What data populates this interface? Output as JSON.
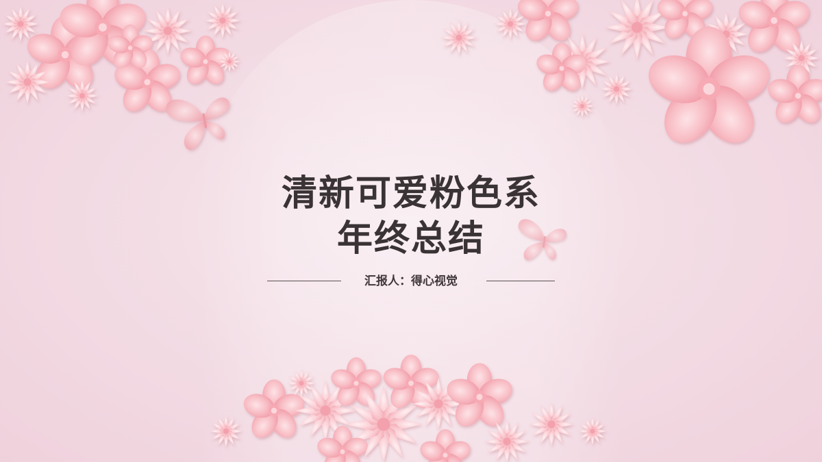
{
  "slide": {
    "title_line1": "清新可爱粉色系",
    "title_line2": "年终总结",
    "reporter": "汇报人：得心视觉"
  },
  "colors": {
    "background": "#f3dde5",
    "petal_light": "#fbd3d8",
    "petal_mid": "#f6b0b9",
    "petal_dark": "#ef919d",
    "title_text": "#3a3335"
  }
}
